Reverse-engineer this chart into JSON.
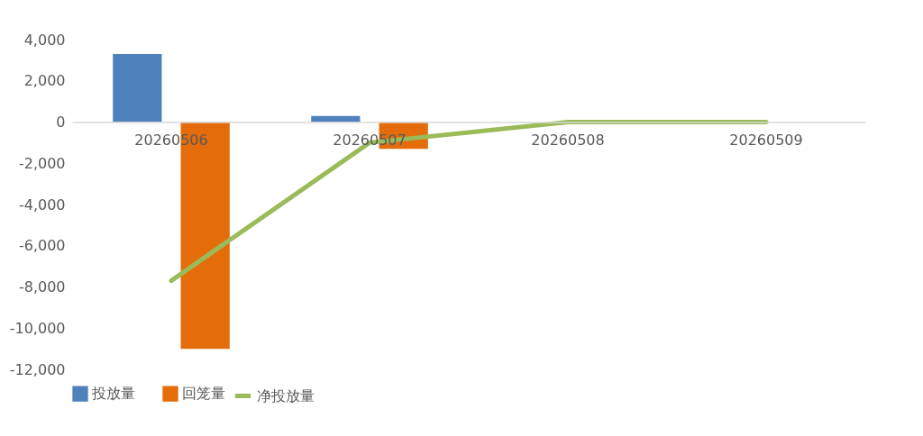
{
  "chart_data": {
    "type": "bar",
    "categories": [
      "20260506",
      "20260507",
      "20260508",
      "20260509"
    ],
    "series": [
      {
        "name": "投放量",
        "color": "#4f81bd",
        "values": [
          3300,
          300,
          0,
          0
        ]
      },
      {
        "name": "回笼量",
        "color": "#e46c0a",
        "values": [
          -11000,
          -1300,
          0,
          0
        ]
      },
      {
        "name": "净投放量",
        "type": "line",
        "color": "#9bbb59",
        "values": [
          -7700,
          -1000,
          0,
          0
        ]
      }
    ],
    "ylim": [
      -12000,
      4000
    ],
    "yticks": [
      {
        "value": -12000,
        "label": "-12,000"
      },
      {
        "value": -10000,
        "label": "-10,000"
      },
      {
        "value": -8000,
        "label": "-8,000"
      },
      {
        "value": -6000,
        "label": "-6,000"
      },
      {
        "value": -4000,
        "label": "-4,000"
      },
      {
        "value": -2000,
        "label": "-2,000"
      },
      0,
      {
        "value": 2000,
        "label": "2,000"
      },
      {
        "value": 4000,
        "label": "4,000"
      }
    ],
    "grid": false,
    "legend": "bottom"
  }
}
